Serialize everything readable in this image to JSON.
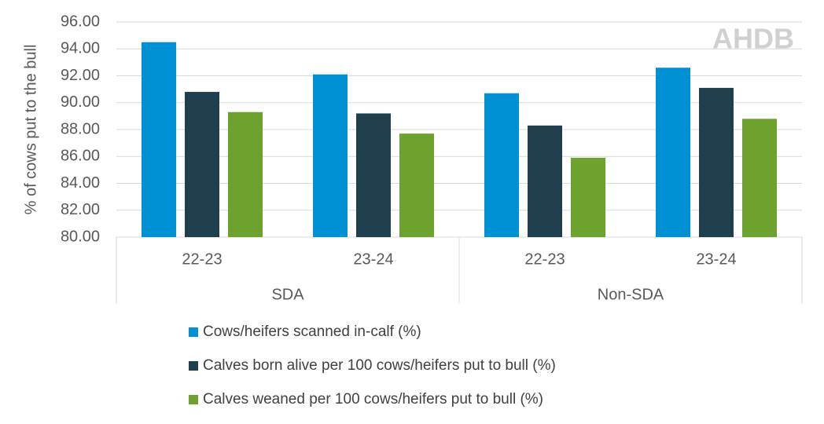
{
  "chart_data": {
    "type": "bar",
    "y_axis_label": "% of cows put to the bull",
    "watermark": "AHDB",
    "categories": [
      "22-23",
      "23-24",
      "22-23",
      "23-24"
    ],
    "groups": [
      "SDA",
      "Non-SDA"
    ],
    "series": [
      {
        "name": "Cows/heifers scanned in-calf (%)",
        "color": "#0090d4",
        "values": [
          94.5,
          92.1,
          90.7,
          92.6
        ]
      },
      {
        "name": "Calves born alive per 100 cows/heifers put to bull (%)",
        "color": "#1f3f4f",
        "values": [
          90.8,
          89.2,
          88.3,
          91.1
        ]
      },
      {
        "name": "Calves weaned per 100 cows/heifers put to bull (%)",
        "color": "#6ea22f",
        "values": [
          89.3,
          87.7,
          85.9,
          88.8
        ]
      }
    ],
    "ylim": [
      80,
      96
    ],
    "yticks": [
      {
        "value": 80,
        "label": "80.00"
      },
      {
        "value": 82,
        "label": "82.00"
      },
      {
        "value": 84,
        "label": "84.00"
      },
      {
        "value": 86,
        "label": "86.00"
      },
      {
        "value": 88,
        "label": "88.00"
      },
      {
        "value": 90,
        "label": "90.00"
      },
      {
        "value": 92,
        "label": "92.00"
      },
      {
        "value": 94,
        "label": "94.00"
      },
      {
        "value": 96,
        "label": "96.00"
      }
    ],
    "grid": true,
    "legend": "bottom"
  }
}
